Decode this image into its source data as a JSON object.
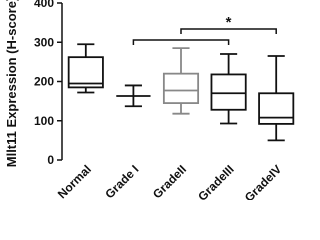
{
  "chart_data": {
    "type": "box",
    "y_label": "Mllt11 Expression (H-score)",
    "categories": [
      "Normal",
      "Grade I",
      "GradeII",
      "GradeIII",
      "GradeIV"
    ],
    "boxes": [
      {
        "min": 172,
        "q1": 185,
        "median": 195,
        "q3": 262,
        "max": 295,
        "color": "#111111"
      },
      {
        "min": 137,
        "q1": 163,
        "median": 163,
        "q3": 163,
        "max": 190,
        "color": "#111111"
      },
      {
        "min": 118,
        "q1": 145,
        "median": 177,
        "q3": 220,
        "max": 285,
        "color": "#888888"
      },
      {
        "min": 93,
        "q1": 128,
        "median": 170,
        "q3": 218,
        "max": 270,
        "color": "#111111"
      },
      {
        "min": 50,
        "q1": 92,
        "median": 108,
        "q3": 170,
        "max": 265,
        "color": "#111111"
      }
    ],
    "ylim": [
      0,
      400
    ],
    "yticks": [
      0,
      100,
      200,
      300,
      400
    ],
    "annotation": "*"
  }
}
